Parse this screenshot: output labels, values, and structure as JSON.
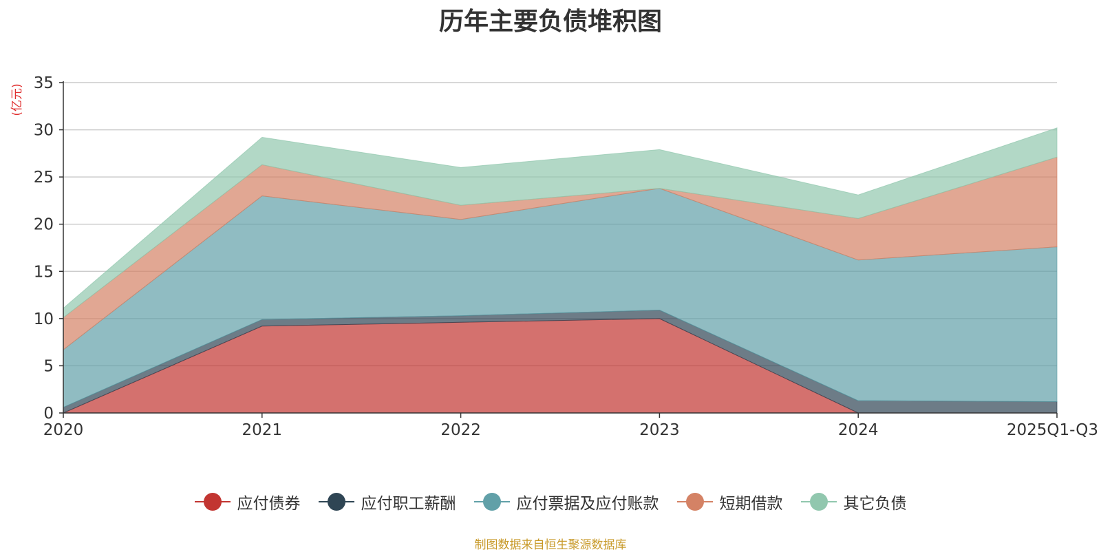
{
  "chart_data": {
    "type": "area",
    "stacked": true,
    "title": "历年主要负债堆积图",
    "ylabel": "(亿元)",
    "xlabel": "",
    "categories": [
      "2020",
      "2021",
      "2022",
      "2023",
      "2024",
      "2025Q1-Q3"
    ],
    "ylim": [
      0,
      35
    ],
    "yticks": [
      0,
      5,
      10,
      15,
      20,
      25,
      30,
      35
    ],
    "grid": true,
    "legend_position": "bottom",
    "series": [
      {
        "name": "应付债券",
        "color": "#c23531",
        "values": [
          0,
          9.2,
          9.6,
          10.0,
          0,
          0
        ]
      },
      {
        "name": "应付职工薪酬",
        "color": "#2f4554",
        "values": [
          0.6,
          0.7,
          0.7,
          0.9,
          1.3,
          1.2
        ]
      },
      {
        "name": "应付票据及应付账款",
        "color": "#61a0a8",
        "values": [
          6.1,
          13.1,
          10.2,
          12.9,
          14.9,
          16.4
        ]
      },
      {
        "name": "短期借款",
        "color": "#d48265",
        "values": [
          3.4,
          3.3,
          1.5,
          0,
          4.4,
          9.5
        ]
      },
      {
        "name": "其它负债",
        "color": "#91c7ae",
        "values": [
          1.0,
          2.9,
          4.0,
          4.1,
          2.5,
          3.1
        ]
      }
    ]
  },
  "source_note": "制图数据来自恒生聚源数据库"
}
